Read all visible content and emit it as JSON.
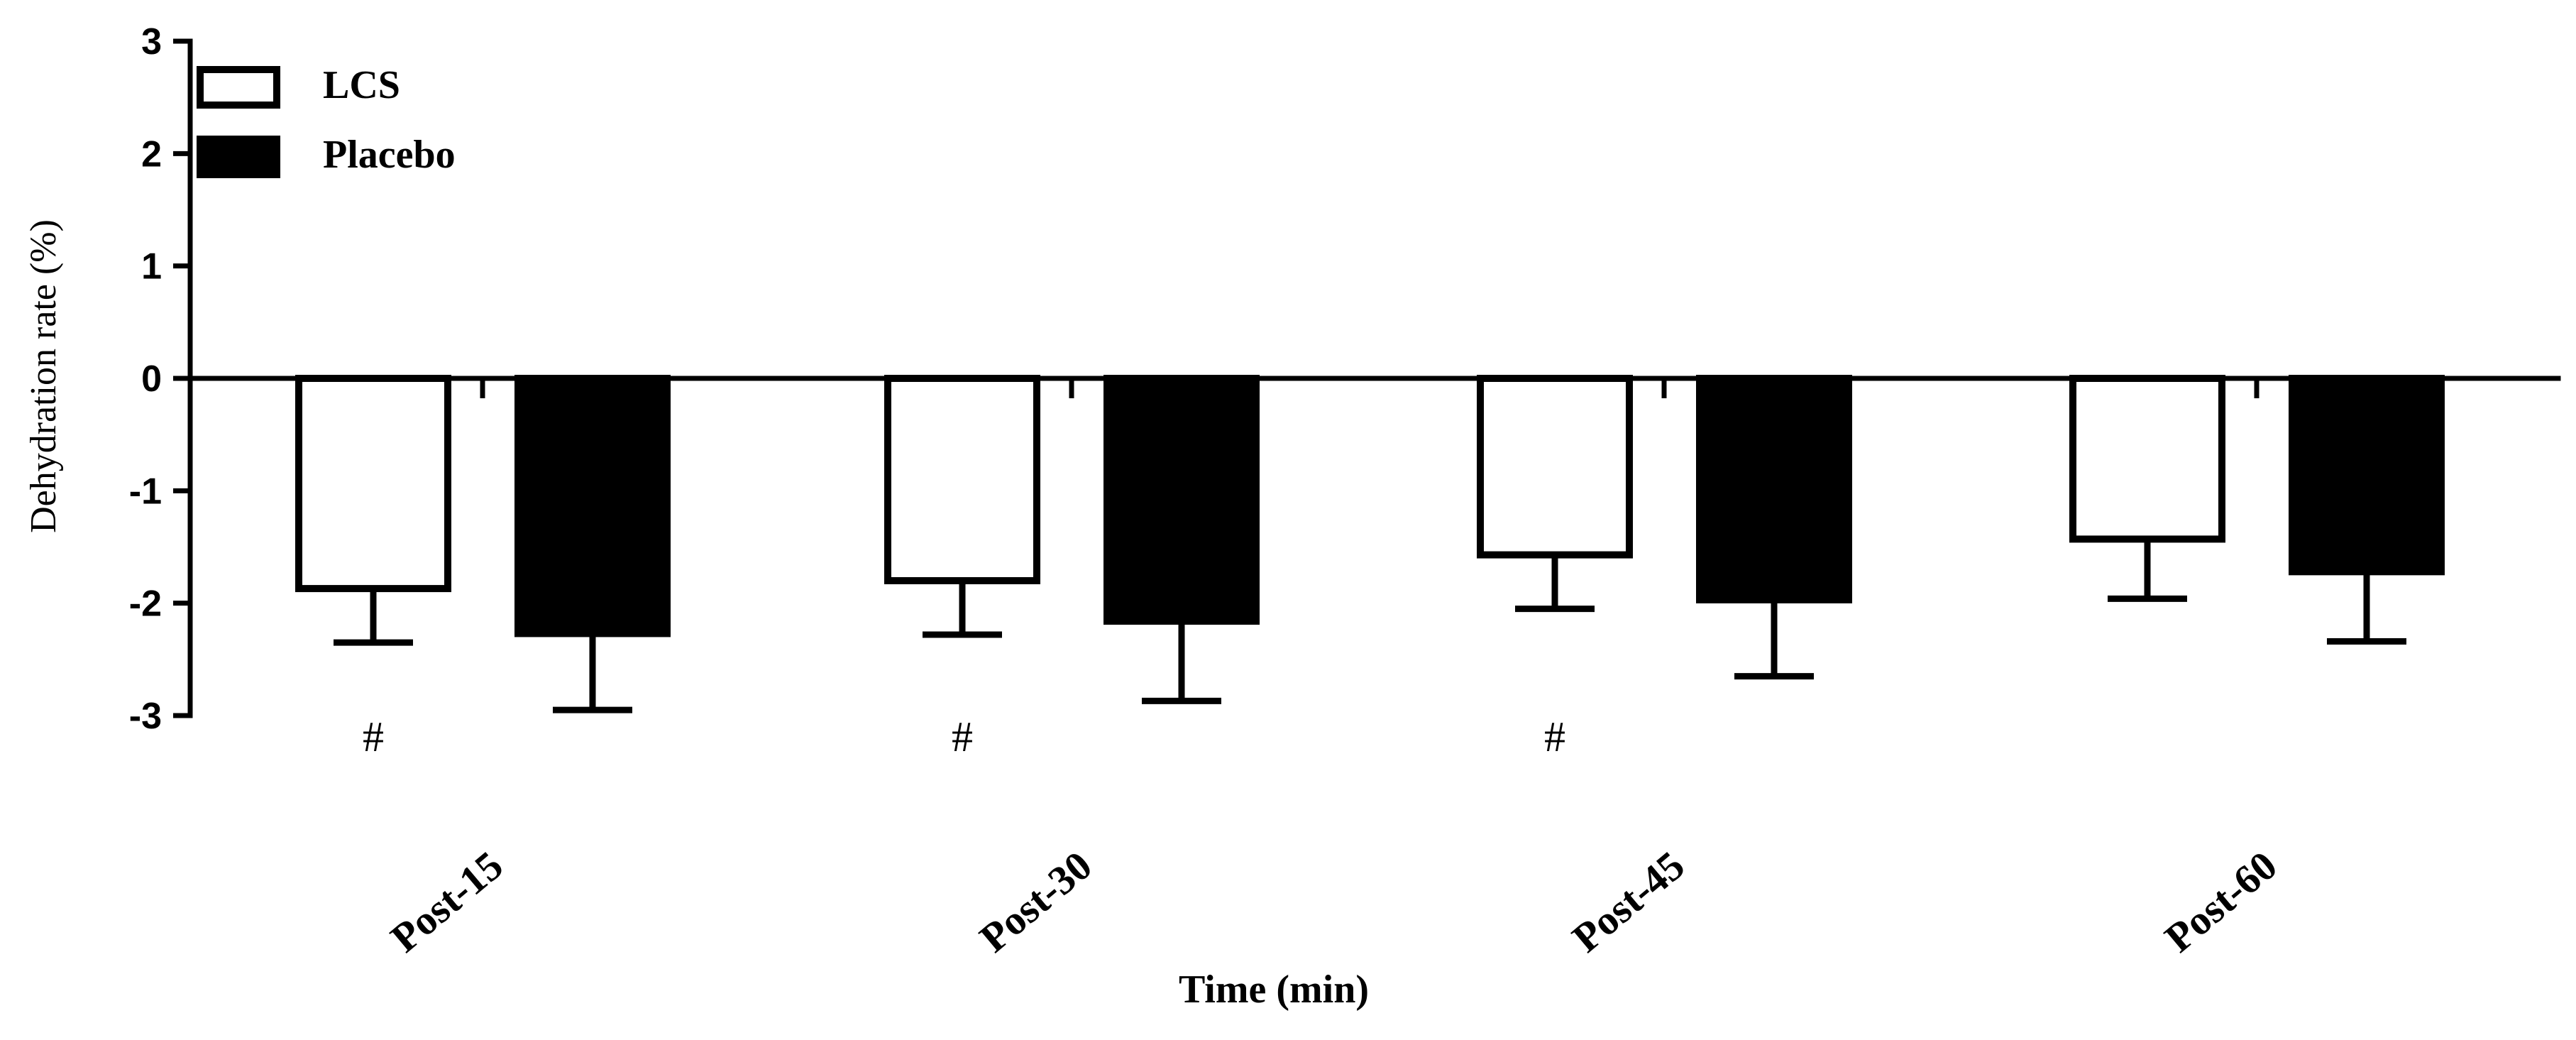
{
  "chart_data": {
    "type": "bar",
    "title": "",
    "xlabel": "Time (min)",
    "ylabel": "Dehydration rate (%)",
    "ylim": [
      -3,
      3
    ],
    "yticks": [
      "3",
      "2",
      "1",
      "0",
      "-1",
      "-2",
      "-3"
    ],
    "ytick_values": [
      3,
      2,
      1,
      0,
      -1,
      -2,
      -3
    ],
    "categories": [
      "Post-15",
      "Post-30",
      "Post-45",
      "Post-60"
    ],
    "series": [
      {
        "name": "LCS",
        "style": "open",
        "values": [
          -1.87,
          -1.8,
          -1.57,
          -1.43
        ],
        "error": [
          0.48,
          0.48,
          0.48,
          0.53
        ]
      },
      {
        "name": "Placebo",
        "style": "filled",
        "values": [
          -2.27,
          -2.16,
          -1.97,
          -1.72
        ],
        "error": [
          0.68,
          0.71,
          0.68,
          0.62
        ]
      }
    ],
    "annotations": [
      {
        "category_index": 0,
        "series_index": 0,
        "text": "#"
      },
      {
        "category_index": 1,
        "series_index": 0,
        "text": "#"
      },
      {
        "category_index": 2,
        "series_index": 0,
        "text": "#"
      }
    ],
    "legend_position": "top-left",
    "grid": false,
    "colors": {
      "open_fill": "#ffffff",
      "filled_fill": "#000000",
      "stroke": "#000000"
    }
  }
}
